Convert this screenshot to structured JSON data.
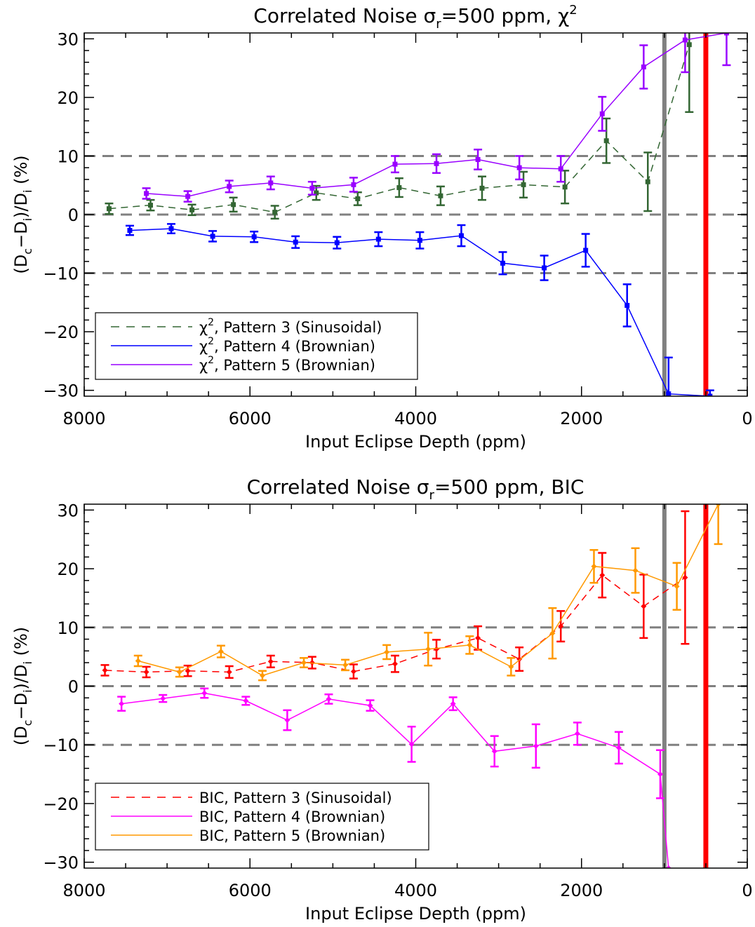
{
  "chart_data": [
    {
      "type": "line",
      "title": "Correlated Noise σ",
      "title_sub": "r",
      "title_value": "=500 ppm, χ",
      "title_sup": "2",
      "xlabel": "Input Eclipse Depth (ppm)",
      "ylabel": "(D",
      "ylabel_sub1": "c",
      "ylabel_mid": "−D",
      "ylabel_sub2": "i",
      "ylabel_mid2": ")/D",
      "ylabel_sub3": "i",
      "ylabel_end": " (%)",
      "xlim": [
        8000,
        0
      ],
      "ylim": [
        -31,
        31
      ],
      "xticks": [
        "8000",
        "6000",
        "4000",
        "2000",
        "0"
      ],
      "yticks": [
        "30",
        "20",
        "10",
        "0",
        "−10",
        "−20",
        "−30"
      ],
      "reference_lines_y": [
        10,
        0,
        -10
      ],
      "vertical_lines": [
        {
          "x": 1000,
          "color": "#808080"
        },
        {
          "x": 500,
          "color": "#ff0000"
        }
      ],
      "legend_position": "bottom-left",
      "series": [
        {
          "name": "Pattern 3 (Sinusoidal)",
          "legend_prefix": "χ",
          "legend_sup": "2",
          "color": "#336633",
          "dash": true,
          "x": [
            7700,
            7200,
            6700,
            6200,
            5700,
            5200,
            4700,
            4200,
            3700,
            3200,
            2700,
            2200,
            1700,
            1200,
            700
          ],
          "y": [
            1.0,
            1.6,
            0.8,
            1.7,
            0.4,
            3.7,
            2.7,
            4.6,
            3.2,
            4.5,
            5.1,
            4.7,
            12.6,
            5.6,
            29
          ],
          "err": [
            0.9,
            0.9,
            0.9,
            1.2,
            1.1,
            1.2,
            1.1,
            1.6,
            1.6,
            2.0,
            2.2,
            2.8,
            3.8,
            5.0,
            11.5
          ]
        },
        {
          "name": "Pattern 4 (Brownian)",
          "legend_prefix": "χ",
          "legend_sup": "2",
          "color": "#0000ff",
          "dash": false,
          "x": [
            7450,
            6950,
            6450,
            5950,
            5450,
            4950,
            4450,
            3950,
            3450,
            2950,
            2450,
            1950,
            1450,
            950,
            450
          ],
          "y": [
            -2.7,
            -2.4,
            -3.7,
            -3.8,
            -4.7,
            -4.8,
            -4.2,
            -4.4,
            -3.6,
            -8.3,
            -9.1,
            -6.1,
            -15.5,
            -30.6,
            -31
          ],
          "err": [
            0.8,
            0.8,
            0.9,
            0.9,
            1.0,
            1.0,
            1.2,
            1.4,
            1.8,
            1.9,
            2.1,
            2.8,
            3.6,
            6.2,
            1
          ]
        },
        {
          "name": "Pattern 5 (Brownian)",
          "legend_prefix": "χ",
          "legend_sup": "2",
          "color": "#9900ff",
          "dash": false,
          "x": [
            7250,
            6750,
            6250,
            5750,
            5250,
            4750,
            4250,
            3750,
            3250,
            2750,
            2250,
            1750,
            1250,
            750,
            250
          ],
          "y": [
            3.6,
            3.1,
            4.8,
            5.4,
            4.5,
            5.1,
            8.6,
            8.7,
            9.4,
            8.0,
            7.8,
            17.2,
            25.2,
            29.8,
            31
          ],
          "err": [
            0.9,
            0.9,
            1.0,
            1.1,
            1.1,
            1.2,
            1.4,
            1.6,
            1.7,
            2.0,
            2.2,
            2.9,
            3.7,
            5.5,
            5.5
          ]
        }
      ]
    },
    {
      "type": "line",
      "title": "Correlated Noise σ",
      "title_sub": "r",
      "title_value": "=500 ppm, BIC",
      "title_sup": "",
      "xlabel": "Input Eclipse Depth (ppm)",
      "ylabel": "(D",
      "ylabel_sub1": "c",
      "ylabel_mid": "−D",
      "ylabel_sub2": "i",
      "ylabel_mid2": ")/D",
      "ylabel_sub3": "i",
      "ylabel_end": " (%)",
      "xlim": [
        8000,
        0
      ],
      "ylim": [
        -31,
        31
      ],
      "xticks": [
        "8000",
        "6000",
        "4000",
        "2000",
        "0"
      ],
      "yticks": [
        "30",
        "20",
        "10",
        "0",
        "−10",
        "−20",
        "−30"
      ],
      "reference_lines_y": [
        10,
        0,
        -10
      ],
      "vertical_lines": [
        {
          "x": 1000,
          "color": "#808080"
        },
        {
          "x": 500,
          "color": "#ff0000"
        }
      ],
      "legend_position": "bottom-left",
      "series": [
        {
          "name": "BIC, Pattern 3 (Sinusoidal)",
          "color": "#ff0000",
          "dash": true,
          "x": [
            7750,
            7250,
            6750,
            6250,
            5750,
            5250,
            4750,
            4250,
            3750,
            3250,
            2750,
            2250,
            1750,
            1250,
            750
          ],
          "y": [
            2.7,
            2.4,
            2.6,
            2.4,
            4.2,
            4.0,
            2.5,
            3.8,
            6.3,
            8.2,
            4.6,
            10.2,
            18.9,
            13.6,
            18.5
          ],
          "err": [
            0.9,
            0.9,
            0.9,
            1.0,
            1.0,
            1.0,
            1.2,
            1.4,
            1.6,
            2.0,
            2.0,
            2.6,
            3.8,
            5.4,
            11.3
          ]
        },
        {
          "name": "BIC, Pattern 4 (Brownian)",
          "color": "#ff00ff",
          "dash": false,
          "x": [
            7550,
            7050,
            6550,
            6050,
            5550,
            5050,
            4550,
            4050,
            3550,
            3050,
            2550,
            2050,
            1550,
            1050,
            950
          ],
          "y": [
            -3.0,
            -2.1,
            -1.2,
            -2.5,
            -5.8,
            -2.2,
            -3.3,
            -9.9,
            -3.0,
            -11.1,
            -10.2,
            -8.1,
            -10.5,
            -15.0,
            -31
          ],
          "err": [
            1.2,
            0.6,
            0.8,
            0.7,
            1.7,
            0.8,
            0.9,
            3.0,
            1.1,
            2.6,
            3.7,
            1.9,
            2.7,
            4.1,
            0
          ]
        },
        {
          "name": "BIC, Pattern 5 (Brownian)",
          "color": "#ff9900",
          "dash": false,
          "x": [
            7350,
            6850,
            6350,
            5850,
            5350,
            4850,
            4350,
            3850,
            3350,
            2850,
            2350,
            1850,
            1350,
            850,
            350
          ],
          "y": [
            4.3,
            2.4,
            5.9,
            1.8,
            4.0,
            3.6,
            5.8,
            6.3,
            7.0,
            3.3,
            9.0,
            20.4,
            19.7,
            17.0,
            31
          ],
          "err": [
            0.9,
            0.8,
            1.0,
            0.8,
            0.8,
            0.9,
            1.2,
            2.8,
            1.5,
            1.5,
            4.3,
            2.8,
            3.8,
            4.0,
            6.8
          ]
        }
      ]
    }
  ]
}
